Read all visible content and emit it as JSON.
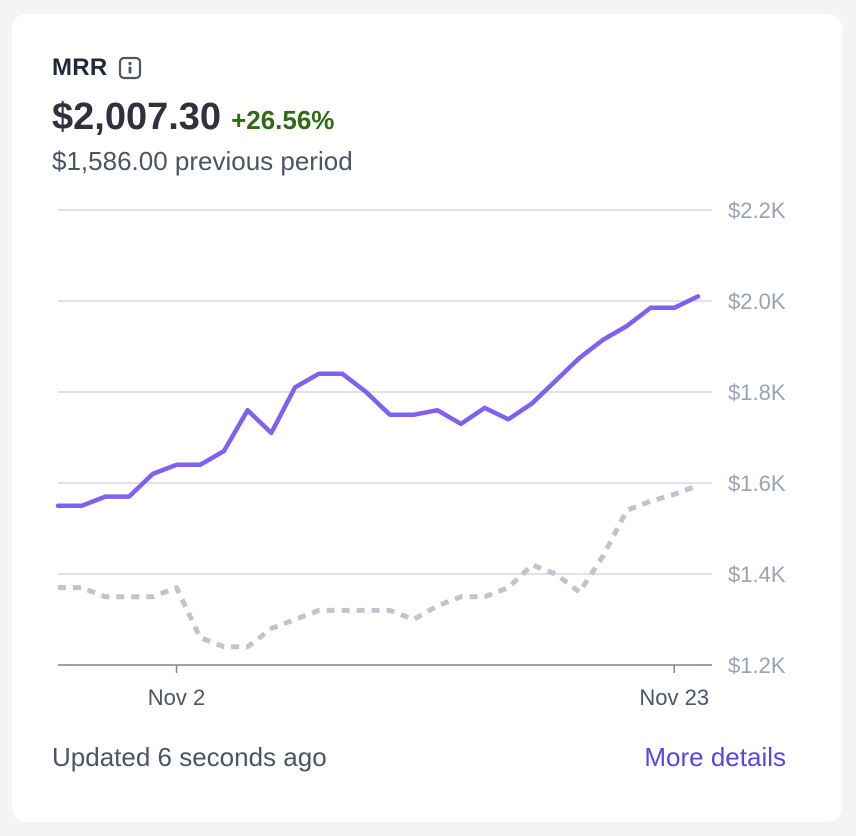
{
  "card": {
    "title": "MRR",
    "value": "$2,007.30",
    "change": "+26.56%",
    "previous": "$1,586.00 previous period",
    "updated": "Updated 6 seconds ago",
    "link": "More details"
  },
  "colors": {
    "current": "#8060ee",
    "previous": "#bfc5d0",
    "positive": "#2e6b12",
    "link": "#5846e8"
  },
  "chart_data": {
    "type": "line",
    "x_ticks": [
      "Nov 2",
      "Nov 23"
    ],
    "y_ticks": [
      "$1.2K",
      "$1.4K",
      "$1.6K",
      "$1.8K",
      "$2.0K",
      "$2.2K"
    ],
    "ylim": [
      1200,
      2200
    ],
    "grid": true,
    "series": [
      {
        "values": [
          1550,
          1550,
          1570,
          1570,
          1620,
          1640,
          1640,
          1670,
          1760,
          1710,
          1810,
          1840,
          1840,
          1800,
          1750,
          1750,
          1760,
          1730,
          1765,
          1740,
          1775,
          1825,
          1875,
          1915,
          1945,
          1985,
          1985,
          2010
        ],
        "style": "solid"
      },
      {
        "values": [
          1370,
          1370,
          1350,
          1350,
          1350,
          1370,
          1260,
          1240,
          1240,
          1280,
          1300,
          1320,
          1320,
          1320,
          1320,
          1300,
          1330,
          1350,
          1350,
          1370,
          1420,
          1400,
          1360,
          1440,
          1540,
          1560,
          1575,
          1595
        ],
        "style": "dashed"
      }
    ]
  }
}
